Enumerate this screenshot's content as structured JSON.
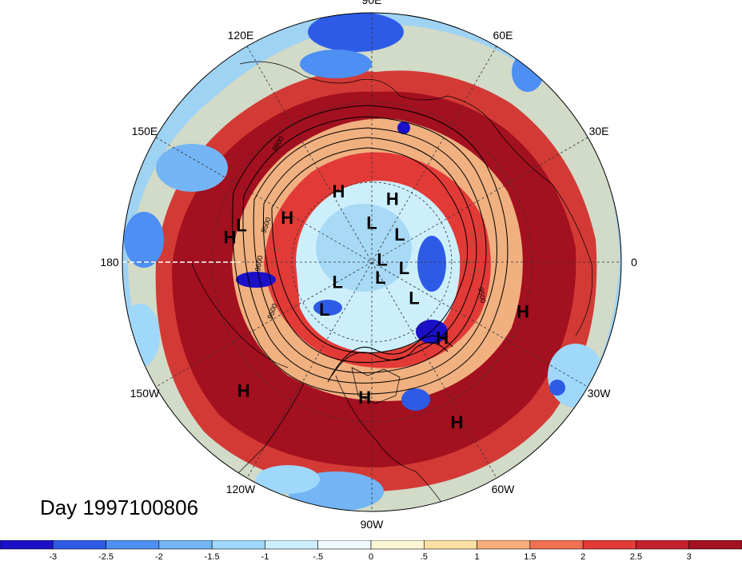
{
  "map": {
    "projection": "north-polar-stereographic",
    "longitude_labels": [
      {
        "text": "90E",
        "lon": 90
      },
      {
        "text": "60E",
        "lon": 60
      },
      {
        "text": "30E",
        "lon": 30
      },
      {
        "text": "0",
        "lon": 0
      },
      {
        "text": "30W",
        "lon": -30
      },
      {
        "text": "60W",
        "lon": -60
      },
      {
        "text": "90W",
        "lon": -90
      },
      {
        "text": "120W",
        "lon": -120
      },
      {
        "text": "150W",
        "lon": -150
      },
      {
        "text": "180",
        "lon": 180
      },
      {
        "text": "150E",
        "lon": 150
      },
      {
        "text": "120E",
        "lon": 120
      }
    ],
    "contour_labels": [
      "9600",
      "9500",
      "9600",
      "9500",
      "9500"
    ],
    "pressure_centers": [
      {
        "type": "H",
        "lon": 115,
        "lat": 55
      },
      {
        "type": "H",
        "lon": 72,
        "lat": 60
      },
      {
        "type": "H",
        "lon": 152,
        "lat": 48
      },
      {
        "type": "L",
        "lon": 164,
        "lat": 33
      },
      {
        "type": "H",
        "lon": 170,
        "lat": 30
      },
      {
        "type": "L",
        "lon": 90,
        "lat": 72
      },
      {
        "type": "L",
        "lon": 45,
        "lat": 72
      },
      {
        "type": "L",
        "lon": 15,
        "lat": 85
      },
      {
        "type": "L",
        "lon": -10,
        "lat": 75
      },
      {
        "type": "L",
        "lon": -60,
        "lat": 82
      },
      {
        "type": "L",
        "lon": -40,
        "lat": 65
      },
      {
        "type": "L",
        "lon": -150,
        "lat": 72
      },
      {
        "type": "L",
        "lon": -135,
        "lat": 60
      },
      {
        "type": "H",
        "lon": -47,
        "lat": 45
      },
      {
        "type": "H",
        "lon": -18,
        "lat": 25
      },
      {
        "type": "H",
        "lon": -93,
        "lat": 33
      },
      {
        "type": "H",
        "lon": -135,
        "lat": 18
      },
      {
        "type": "H",
        "lon": -62,
        "lat": 18
      }
    ]
  },
  "title": "Day 1997100806",
  "colorbar": {
    "tick_labels": [
      "-3",
      "-2.5",
      "-2",
      "-1.5",
      "-1",
      "-.5",
      "0",
      ".5",
      "1",
      "1.5",
      "2",
      "2.5",
      "3"
    ],
    "colors": [
      "#1b10c8",
      "#2e5be6",
      "#4d8ff2",
      "#73b5f5",
      "#9fd8fa",
      "#cdeffc",
      "#f0f9fd",
      "#fdf6d6",
      "#fbe0a4",
      "#f6ab78",
      "#ef7052",
      "#e23a37",
      "#c51f2e",
      "#a3101f"
    ]
  }
}
